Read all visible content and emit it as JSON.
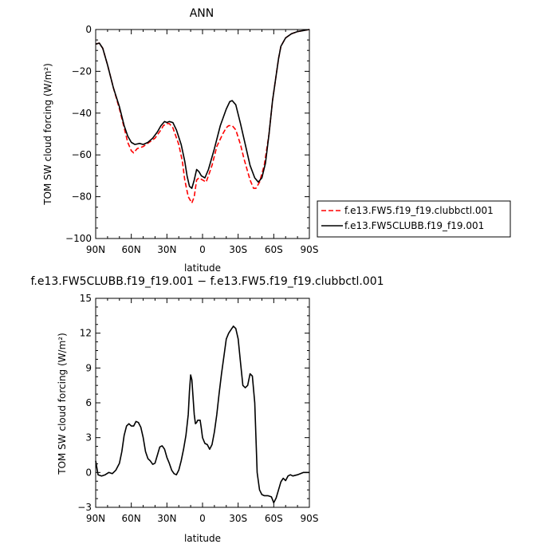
{
  "chart_data": [
    {
      "type": "line",
      "title": "ANN",
      "xlabel": "latitude",
      "ylabel": "TOM SW cloud forcing (W/m²)",
      "xlim": [
        90,
        -90
      ],
      "ylim": [
        -100,
        0
      ],
      "x_ticks": [
        90,
        60,
        30,
        0,
        -30,
        -60,
        -90
      ],
      "x_tick_labels": [
        "90N",
        "60N",
        "30N",
        "0",
        "30S",
        "60S",
        "90S"
      ],
      "y_ticks": [
        0,
        -20,
        -40,
        -60,
        -80,
        -100
      ],
      "y_tick_labels": [
        "0",
        "−20",
        "−40",
        "−60",
        "−80",
        "−100"
      ],
      "legend_position": "right",
      "series": [
        {
          "name": "f.e13.FW5.f19_f19.clubbctl.001",
          "color": "#ff0000",
          "dash": "dashed",
          "points": [
            [
              90,
              -7
            ],
            [
              87,
              -6.5
            ],
            [
              84,
              -9
            ],
            [
              80,
              -17
            ],
            [
              75,
              -28
            ],
            [
              70,
              -38
            ],
            [
              66,
              -47
            ],
            [
              63,
              -54
            ],
            [
              60,
              -58
            ],
            [
              58,
              -59
            ],
            [
              55,
              -57
            ],
            [
              50,
              -56
            ],
            [
              45,
              -54
            ],
            [
              40,
              -52
            ],
            [
              35,
              -48
            ],
            [
              33,
              -46
            ],
            [
              30,
              -45
            ],
            [
              28,
              -45
            ],
            [
              25,
              -47
            ],
            [
              20,
              -55
            ],
            [
              17,
              -63
            ],
            [
              15,
              -72
            ],
            [
              12,
              -80
            ],
            [
              10,
              -82
            ],
            [
              9,
              -83
            ],
            [
              7,
              -80
            ],
            [
              5,
              -72
            ],
            [
              3,
              -71
            ],
            [
              0,
              -72
            ],
            [
              -3,
              -73
            ],
            [
              -5,
              -70
            ],
            [
              -8,
              -65
            ],
            [
              -12,
              -56
            ],
            [
              -17,
              -50
            ],
            [
              -20,
              -47
            ],
            [
              -22,
              -46
            ],
            [
              -25,
              -46
            ],
            [
              -28,
              -48
            ],
            [
              -32,
              -55
            ],
            [
              -35,
              -62
            ],
            [
              -40,
              -72
            ],
            [
              -43,
              -76
            ],
            [
              -45,
              -76
            ],
            [
              -48,
              -73
            ],
            [
              -52,
              -65
            ],
            [
              -56,
              -50
            ],
            [
              -59,
              -34
            ],
            [
              -62,
              -22
            ],
            [
              -64,
              -14
            ],
            [
              -66,
              -8
            ],
            [
              -70,
              -4
            ],
            [
              -75,
              -2
            ],
            [
              -80,
              -1
            ],
            [
              -85,
              -0.5
            ],
            [
              -90,
              0
            ]
          ]
        },
        {
          "name": "f.e13.FW5CLUBB.f19_f19.001",
          "color": "#000000",
          "dash": "solid",
          "points": [
            [
              90,
              -7
            ],
            [
              87,
              -6.5
            ],
            [
              84,
              -9
            ],
            [
              80,
              -17
            ],
            [
              75,
              -28
            ],
            [
              70,
              -37
            ],
            [
              66,
              -46
            ],
            [
              63,
              -51
            ],
            [
              60,
              -54
            ],
            [
              57,
              -55
            ],
            [
              53,
              -54.5
            ],
            [
              50,
              -55
            ],
            [
              46,
              -54
            ],
            [
              42,
              -52
            ],
            [
              38,
              -49
            ],
            [
              35,
              -46
            ],
            [
              32,
              -44
            ],
            [
              30,
              -44.5
            ],
            [
              28,
              -44
            ],
            [
              25,
              -44.5
            ],
            [
              22,
              -48
            ],
            [
              18,
              -55
            ],
            [
              15,
              -63
            ],
            [
              13,
              -70
            ],
            [
              11,
              -75
            ],
            [
              9,
              -76
            ],
            [
              7,
              -72
            ],
            [
              5,
              -67
            ],
            [
              3,
              -68
            ],
            [
              1,
              -70
            ],
            [
              -2,
              -71
            ],
            [
              -5,
              -67
            ],
            [
              -10,
              -57
            ],
            [
              -15,
              -46
            ],
            [
              -20,
              -38
            ],
            [
              -23,
              -34.5
            ],
            [
              -25,
              -34
            ],
            [
              -28,
              -36
            ],
            [
              -32,
              -45
            ],
            [
              -36,
              -55
            ],
            [
              -40,
              -65
            ],
            [
              -44,
              -71
            ],
            [
              -47,
              -73
            ],
            [
              -50,
              -71
            ],
            [
              -53,
              -64
            ],
            [
              -56,
              -50
            ],
            [
              -59,
              -34
            ],
            [
              -62,
              -22
            ],
            [
              -64,
              -14
            ],
            [
              -66,
              -8
            ],
            [
              -70,
              -4
            ],
            [
              -75,
              -2
            ],
            [
              -80,
              -1
            ],
            [
              -85,
              -0.5
            ],
            [
              -90,
              0
            ]
          ]
        }
      ]
    },
    {
      "type": "line",
      "title": "f.e13.FW5CLUBB.f19_f19.001 − f.e13.FW5.f19_f19.clubbctl.001",
      "xlabel": "latitude",
      "ylabel": "TOM SW cloud forcing (W/m²)",
      "xlim": [
        90,
        -90
      ],
      "ylim": [
        -3,
        15
      ],
      "x_ticks": [
        90,
        60,
        30,
        0,
        -30,
        -60,
        -90
      ],
      "x_tick_labels": [
        "90N",
        "60N",
        "30N",
        "0",
        "30S",
        "60S",
        "90S"
      ],
      "y_ticks": [
        15,
        12,
        9,
        6,
        3,
        0,
        -3
      ],
      "y_tick_labels": [
        "15",
        "12",
        "9",
        "6",
        "3",
        "0",
        "−3"
      ],
      "series": [
        {
          "name": "",
          "color": "#000000",
          "dash": "solid",
          "points": [
            [
              90,
              1
            ],
            [
              88,
              -0.2
            ],
            [
              85,
              -0.3
            ],
            [
              82,
              -0.2
            ],
            [
              79,
              0
            ],
            [
              76,
              -0.1
            ],
            [
              73,
              0.2
            ],
            [
              70,
              0.8
            ],
            [
              68,
              1.8
            ],
            [
              66,
              3.2
            ],
            [
              64,
              4
            ],
            [
              62,
              4.2
            ],
            [
              60,
              4
            ],
            [
              58,
              4
            ],
            [
              56,
              4.4
            ],
            [
              54,
              4.3
            ],
            [
              52,
              3.9
            ],
            [
              50,
              3
            ],
            [
              48,
              1.8
            ],
            [
              46,
              1.2
            ],
            [
              44,
              1
            ],
            [
              42,
              0.7
            ],
            [
              40,
              0.8
            ],
            [
              38,
              1.5
            ],
            [
              36,
              2.2
            ],
            [
              34,
              2.3
            ],
            [
              32,
              2
            ],
            [
              30,
              1.3
            ],
            [
              28,
              0.8
            ],
            [
              26,
              0.2
            ],
            [
              24,
              -0.1
            ],
            [
              22,
              -0.2
            ],
            [
              20,
              0.2
            ],
            [
              18,
              1
            ],
            [
              16,
              2
            ],
            [
              14,
              3.2
            ],
            [
              12,
              5
            ],
            [
              11,
              7
            ],
            [
              10,
              8.4
            ],
            [
              9,
              8
            ],
            [
              8,
              6.5
            ],
            [
              7,
              5
            ],
            [
              6,
              4.2
            ],
            [
              5,
              4.3
            ],
            [
              4,
              4.5
            ],
            [
              2,
              4.5
            ],
            [
              1,
              3.8
            ],
            [
              0,
              3
            ],
            [
              -2,
              2.5
            ],
            [
              -4,
              2.4
            ],
            [
              -6,
              2
            ],
            [
              -8,
              2.4
            ],
            [
              -10,
              3.5
            ],
            [
              -12,
              5
            ],
            [
              -14,
              6.8
            ],
            [
              -16,
              8.5
            ],
            [
              -18,
              10
            ],
            [
              -20,
              11.5
            ],
            [
              -22,
              12
            ],
            [
              -24,
              12.3
            ],
            [
              -26,
              12.6
            ],
            [
              -28,
              12.4
            ],
            [
              -30,
              11.5
            ],
            [
              -32,
              9.5
            ],
            [
              -34,
              7.5
            ],
            [
              -36,
              7.3
            ],
            [
              -38,
              7.5
            ],
            [
              -40,
              8.5
            ],
            [
              -42,
              8.3
            ],
            [
              -44,
              6
            ],
            [
              -45,
              3
            ],
            [
              -46,
              0
            ],
            [
              -48,
              -1.5
            ],
            [
              -50,
              -1.9
            ],
            [
              -52,
              -2
            ],
            [
              -55,
              -2
            ],
            [
              -58,
              -2.1
            ],
            [
              -60,
              -2.6
            ],
            [
              -62,
              -2.2
            ],
            [
              -64,
              -1.5
            ],
            [
              -66,
              -0.8
            ],
            [
              -68,
              -0.5
            ],
            [
              -70,
              -0.7
            ],
            [
              -72,
              -0.3
            ],
            [
              -74,
              -0.2
            ],
            [
              -76,
              -0.3
            ],
            [
              -80,
              -0.2
            ],
            [
              -85,
              0
            ],
            [
              -90,
              0
            ]
          ]
        }
      ]
    }
  ]
}
